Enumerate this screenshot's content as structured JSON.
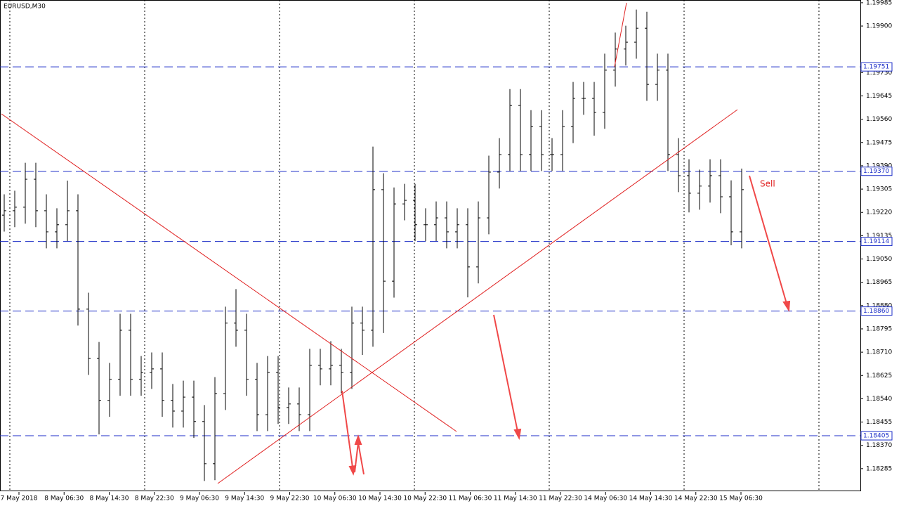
{
  "chart_data": {
    "type": "ohlc",
    "title": "EURUSD,M30",
    "open": [
      1.1921,
      1.19226,
      1.19239,
      1.19341,
      1.19226,
      1.19149,
      1.19175,
      1.19226,
      1.18867,
      1.18687,
      1.18534,
      1.18611,
      1.1879,
      1.18611,
      1.18636,
      1.18649,
      1.18534,
      1.18495,
      1.18546,
      1.18457,
      1.18303,
      1.18559,
      1.18816,
      1.1879,
      1.18611,
      1.18482,
      1.18636,
      1.18508,
      1.18521,
      1.18482,
      1.18662,
      1.18649,
      1.18662,
      1.18636,
      1.18816,
      1.1879,
      1.19303,
      1.18969,
      1.19251,
      1.19264,
      1.19175,
      1.19175,
      1.192,
      1.19149,
      1.19175,
      1.19021,
      1.192,
      1.19367,
      1.19431,
      1.1961,
      1.19431,
      1.19533,
      1.19431,
      1.19431,
      1.19533,
      1.19636,
      1.19636,
      1.19585,
      1.19739,
      1.19816,
      1.19841,
      1.19892,
      1.19687,
      1.19739,
      1.19431,
      1.19354,
      1.1929,
      1.19316,
      1.19354,
      1.19277,
      1.19149
    ],
    "high": [
      1.19286,
      1.19299,
      1.19401,
      1.19401,
      1.19286,
      1.19235,
      1.19336,
      1.19286,
      1.18927,
      1.18747,
      1.18671,
      1.1885,
      1.1885,
      1.18696,
      1.18709,
      1.18709,
      1.18594,
      1.18606,
      1.18606,
      1.18517,
      1.18619,
      1.18876,
      1.1894,
      1.1885,
      1.18671,
      1.18696,
      1.18696,
      1.18581,
      1.18581,
      1.18722,
      1.18722,
      1.1875,
      1.18722,
      1.18876,
      1.18876,
      1.1946,
      1.19363,
      1.19311,
      1.19324,
      1.19324,
      1.19235,
      1.1926,
      1.1926,
      1.19235,
      1.19235,
      1.1926,
      1.19427,
      1.19491,
      1.1967,
      1.1967,
      1.19593,
      1.19593,
      1.19491,
      1.19593,
      1.19696,
      1.19696,
      1.19696,
      1.19799,
      1.19876,
      1.19901,
      1.1996,
      1.19952,
      1.19799,
      1.19799,
      1.19491,
      1.19414,
      1.19376,
      1.19414,
      1.19414,
      1.19337,
      1.1938
    ],
    "low": [
      1.1915,
      1.19166,
      1.19179,
      1.19166,
      1.19089,
      1.19089,
      1.19115,
      1.18807,
      1.18627,
      1.1841,
      1.18474,
      1.18551,
      1.18551,
      1.18551,
      1.18576,
      1.18474,
      1.18435,
      1.18435,
      1.18397,
      1.1824,
      1.18243,
      1.18499,
      1.1873,
      1.18551,
      1.18422,
      1.18422,
      1.18448,
      1.18448,
      1.18422,
      1.18422,
      1.18589,
      1.18589,
      1.1856,
      1.18576,
      1.187,
      1.1873,
      1.1878,
      1.18909,
      1.19191,
      1.19115,
      1.19115,
      1.19115,
      1.19089,
      1.19089,
      1.1891,
      1.18961,
      1.1914,
      1.19307,
      1.19371,
      1.19371,
      1.19371,
      1.19371,
      1.19371,
      1.19371,
      1.19473,
      1.19576,
      1.195,
      1.19525,
      1.19679,
      1.19756,
      1.19781,
      1.19627,
      1.19627,
      1.19371,
      1.19294,
      1.1922,
      1.1923,
      1.19256,
      1.19217,
      1.191,
      1.19089
    ],
    "close": [
      1.19226,
      1.19239,
      1.19341,
      1.19226,
      1.19149,
      1.19175,
      1.19226,
      1.18867,
      1.18687,
      1.18534,
      1.18611,
      1.1879,
      1.18611,
      1.18636,
      1.18649,
      1.18534,
      1.18495,
      1.18546,
      1.18457,
      1.18303,
      1.18559,
      1.18816,
      1.1879,
      1.18611,
      1.18482,
      1.18636,
      1.18508,
      1.18521,
      1.18482,
      1.18662,
      1.18649,
      1.18662,
      1.18636,
      1.18816,
      1.1879,
      1.19303,
      1.18969,
      1.19251,
      1.19264,
      1.19175,
      1.19175,
      1.192,
      1.19149,
      1.19175,
      1.19021,
      1.192,
      1.19367,
      1.19431,
      1.1961,
      1.19431,
      1.19533,
      1.19431,
      1.19431,
      1.19533,
      1.19636,
      1.19636,
      1.19585,
      1.19739,
      1.19816,
      1.19841,
      1.19892,
      1.19687,
      1.19739,
      1.19431,
      1.19354,
      1.1929,
      1.19316,
      1.19354,
      1.19277,
      1.19149,
      1.19303
    ],
    "color": "#000000",
    "ylim": [
      1.182,
      1.19995
    ],
    "yticks": [
      1.19985,
      {
        "value": 1.199,
        "label": "1.19900"
      },
      {
        "value": 1.1973,
        "label": "1.19730"
      },
      1.19645,
      {
        "value": 1.1956,
        "label": "1.19560"
      },
      1.19475,
      {
        "value": 1.1939,
        "label": "1.19390"
      },
      1.19305,
      {
        "value": 1.1922,
        "label": "1.19220"
      },
      1.19135,
      {
        "value": 1.1905,
        "label": "1.19050"
      },
      1.18965,
      {
        "value": 1.1888,
        "label": "1.18880"
      },
      1.18795,
      {
        "value": 1.1871,
        "label": "1.18710"
      },
      1.18625,
      {
        "value": 1.1854,
        "label": "1.18540"
      },
      1.18455,
      {
        "value": 1.1837,
        "label": "1.18370"
      },
      1.18285
    ],
    "levels": [
      {
        "value": 1.19751,
        "label": "1.19751"
      },
      {
        "value": 1.1937,
        "label": "1.19370"
      },
      {
        "value": 1.19114,
        "label": "1.19114"
      },
      {
        "value": 1.1886,
        "label": "1.18860"
      },
      {
        "value": 1.18405,
        "label": "1.18405"
      }
    ],
    "x_labels": [
      "7 May 2018",
      "8 May 06:30",
      "8 May 14:30",
      "8 May 22:30",
      "9 May 06:30",
      "9 May 14:30",
      "9 May 22:30",
      "10 May 06:30",
      "10 May 14:30",
      "10 May 22:30",
      "11 May 06:30",
      "11 May 14:30",
      "11 May 22:30",
      "14 May 06:30",
      "14 May 14:30",
      "14 May 22:30",
      "15 May 06:30"
    ],
    "annotation": "Sell"
  }
}
